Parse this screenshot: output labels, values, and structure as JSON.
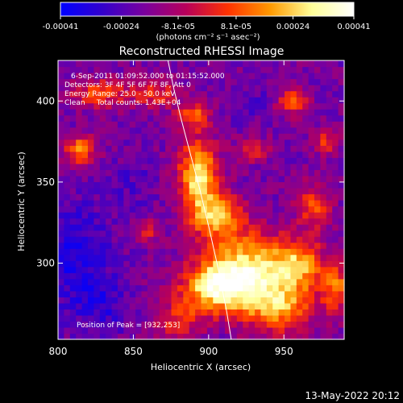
{
  "chart_data": {
    "type": "heatmap",
    "title": "Reconstructed RHESSI Image",
    "xlabel": "Heliocentric X (arcsec)",
    "ylabel": "Heliocentric Y (arcsec)",
    "xlim": [
      800,
      990
    ],
    "ylim": [
      253,
      425
    ],
    "x_ticks": [
      800,
      850,
      900,
      950
    ],
    "y_ticks": [
      300,
      350,
      400
    ],
    "x_tick_labels": [
      "800",
      "850",
      "900",
      "950"
    ],
    "y_tick_labels": [
      "300",
      "350",
      "400"
    ],
    "colorbar": {
      "range": [
        -0.00041,
        0.00041
      ],
      "tick_values": [
        -0.00041,
        -0.00024,
        -8.1e-05,
        8.1e-05,
        0.00024,
        0.00041
      ],
      "tick_labels": [
        "-0.00041",
        "-0.00024",
        "-8.1e-05",
        "8.1e-05",
        "0.00024",
        "0.00041"
      ],
      "unit_label": "(photons cm⁻² s⁻¹ asec⁻²)",
      "colormap": [
        "#0000ff",
        "#3300cc",
        "#7a009e",
        "#b8005a",
        "#ff3300",
        "#ff9900",
        "#ffff99",
        "#ffffff"
      ]
    },
    "annotations": [
      "6-Sep-2011 01:09:52.000 to 01:15:52.000",
      "Detectors: 3F 4F 5F 6F 7F 8F, Att 0",
      "Energy Range: 25.0 - 50.0 keV",
      "Clean     Total counts: 1.43E+04"
    ],
    "peak_label": "Position of Peak = [932,253]",
    "limb_curve": {
      "x": [
        873,
        877,
        882,
        888,
        894,
        900,
        906,
        912,
        915
      ],
      "y": [
        425,
        407,
        388,
        367,
        346,
        323,
        298,
        270,
        253
      ]
    },
    "hotspots": [
      {
        "x": 893,
        "y": 355,
        "amp": 1.0,
        "sx": 9,
        "sy": 15
      },
      {
        "x": 905,
        "y": 330,
        "amp": 0.8,
        "sx": 12,
        "sy": 10
      },
      {
        "x": 925,
        "y": 300,
        "amp": 0.9,
        "sx": 20,
        "sy": 14
      },
      {
        "x": 905,
        "y": 285,
        "amp": 1.0,
        "sx": 16,
        "sy": 10
      },
      {
        "x": 945,
        "y": 275,
        "amp": 0.85,
        "sx": 18,
        "sy": 12
      },
      {
        "x": 960,
        "y": 300,
        "amp": 0.7,
        "sx": 12,
        "sy": 10
      },
      {
        "x": 815,
        "y": 370,
        "amp": 0.75,
        "sx": 7,
        "sy": 6
      },
      {
        "x": 828,
        "y": 405,
        "amp": 0.55,
        "sx": 14,
        "sy": 6
      },
      {
        "x": 865,
        "y": 405,
        "amp": 0.5,
        "sx": 10,
        "sy": 6
      },
      {
        "x": 890,
        "y": 392,
        "amp": 0.55,
        "sx": 8,
        "sy": 6
      },
      {
        "x": 955,
        "y": 400,
        "amp": 0.55,
        "sx": 8,
        "sy": 6
      },
      {
        "x": 978,
        "y": 375,
        "amp": 0.5,
        "sx": 6,
        "sy": 5
      },
      {
        "x": 930,
        "y": 370,
        "amp": 0.45,
        "sx": 8,
        "sy": 5
      },
      {
        "x": 970,
        "y": 335,
        "amp": 0.55,
        "sx": 8,
        "sy": 10
      },
      {
        "x": 985,
        "y": 285,
        "amp": 0.65,
        "sx": 6,
        "sy": 10
      },
      {
        "x": 860,
        "y": 320,
        "amp": 0.35,
        "sx": 6,
        "sy": 5
      },
      {
        "x": 880,
        "y": 265,
        "amp": 0.45,
        "sx": 12,
        "sy": 8
      }
    ],
    "coldspots": [
      {
        "x": 810,
        "y": 305,
        "amp": 0.9,
        "sx": 16,
        "sy": 22
      },
      {
        "x": 830,
        "y": 275,
        "amp": 0.6,
        "sx": 12,
        "sy": 12
      },
      {
        "x": 850,
        "y": 350,
        "amp": 0.35,
        "sx": 10,
        "sy": 12
      },
      {
        "x": 930,
        "y": 400,
        "amp": 0.3,
        "sx": 14,
        "sy": 8
      }
    ]
  },
  "timestamp": "13-May-2022 20:12"
}
